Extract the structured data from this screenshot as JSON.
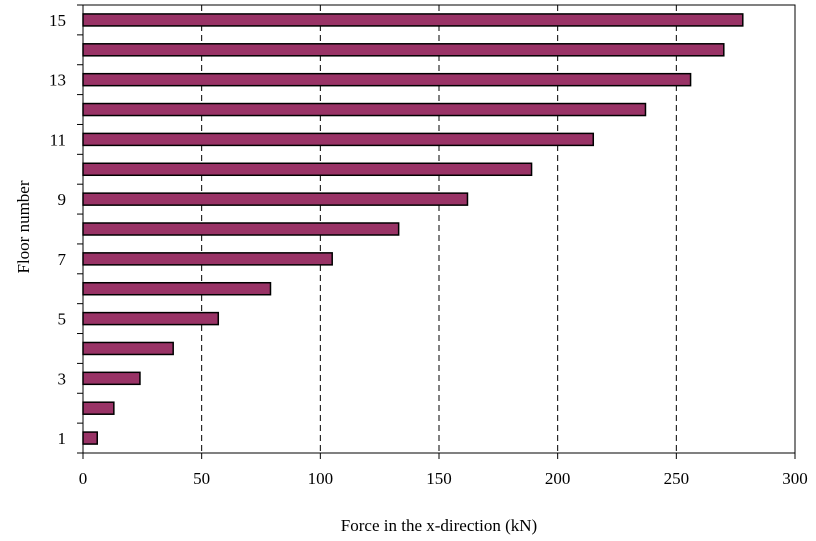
{
  "chart_data": {
    "type": "bar",
    "orientation": "horizontal",
    "title": "",
    "xlabel": "Force in the x-direction (kN)",
    "ylabel": "Floor number",
    "categories": [
      1,
      2,
      3,
      4,
      5,
      6,
      7,
      8,
      9,
      10,
      11,
      12,
      13,
      14,
      15
    ],
    "y_tick_labels": [
      "1",
      "3",
      "5",
      "7",
      "9",
      "11",
      "13",
      "15"
    ],
    "x_ticks": [
      0,
      50,
      100,
      150,
      200,
      250,
      300
    ],
    "xlim": [
      0,
      300
    ],
    "series": [
      {
        "values": [
          6,
          13,
          24,
          38,
          57,
          79,
          105,
          133,
          162,
          189,
          215,
          237,
          256,
          270,
          278
        ]
      }
    ],
    "bar_color": "#993366",
    "bar_edge_color": "#000000",
    "grid": "vertical dashed at x ticks",
    "legend": "none"
  }
}
